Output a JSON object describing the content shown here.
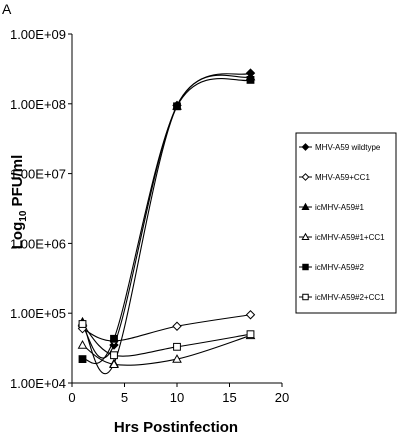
{
  "chart_data": {
    "type": "line",
    "panel_label": "A",
    "title": "",
    "xlabel": "Hrs Postinfection",
    "ylabel": "Log10 PFU/ml",
    "ylabel_main": "Log",
    "ylabel_sub": "10",
    "ylabel_rest": " PFU/ml",
    "y_scale": "log",
    "xlim": [
      0,
      20
    ],
    "ylim": [
      10000,
      1000000000
    ],
    "x_ticks": [
      "0",
      "5",
      "10",
      "15",
      "20"
    ],
    "y_ticks": [
      "1.00E+04",
      "1.00E+05",
      "1.00E+06",
      "1.00E+07",
      "1.00E+08",
      "1.00E+09"
    ],
    "grid": false,
    "legend_position": "right",
    "series": [
      {
        "name": "MHV-A59 wildtype",
        "marker": "diamond-filled",
        "x": [
          1,
          4,
          10,
          17
        ],
        "y": [
          65000,
          35000,
          95000000,
          275000000
        ]
      },
      {
        "name": "MHV-A59+CC1",
        "marker": "diamond-open",
        "x": [
          1,
          4,
          10,
          17
        ],
        "y": [
          60000,
          40000,
          65000,
          95000
        ]
      },
      {
        "name": "icMHV-A59#1",
        "marker": "triangle-filled",
        "x": [
          1,
          4,
          10,
          17
        ],
        "y": [
          75000,
          19000,
          93000000,
          245000000
        ]
      },
      {
        "name": "icMHV-A59#1+CC1",
        "marker": "triangle-open",
        "x": [
          1,
          4,
          10,
          17
        ],
        "y": [
          35000,
          18500,
          22000,
          48000
        ]
      },
      {
        "name": "icMHV-A59#2",
        "marker": "square-filled",
        "x": [
          1,
          4,
          10,
          17
        ],
        "y": [
          22000,
          43000,
          92000000,
          220000000
        ]
      },
      {
        "name": "icMHV-A59#2+CC1",
        "marker": "square-open",
        "x": [
          1,
          4,
          10,
          17
        ],
        "y": [
          70000,
          25000,
          33000,
          50000
        ]
      }
    ]
  }
}
